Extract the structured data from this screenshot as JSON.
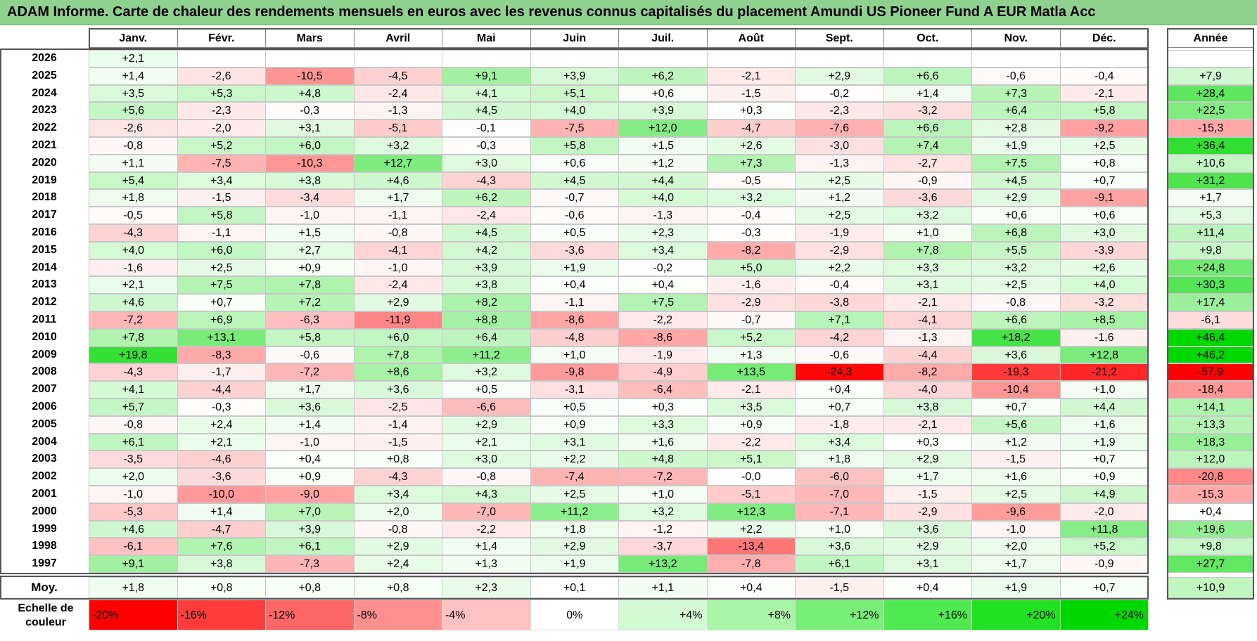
{
  "title": "ADAM Informe. Carte de chaleur des rendements mensuels en euros avec les revenus connus capitalisés du placement Amundi US Pioneer Fund A EUR Matla Acc",
  "chart_data": {
    "type": "heatmap",
    "title": "ADAM Informe. Carte de chaleur des rendements mensuels en euros avec les revenus connus capitalisés du placement Amundi US Pioneer Fund A EUR Matla Acc",
    "months": [
      "Janv.",
      "Févr.",
      "Mars",
      "Avril",
      "Mai",
      "Juin",
      "Juil.",
      "Août",
      "Sept.",
      "Oct.",
      "Nov.",
      "Déc."
    ],
    "year_header": "Année",
    "rows": [
      {
        "year": "2026",
        "m": [
          "+2,1",
          "",
          "",
          "",
          "",
          "",
          "",
          "",
          "",
          "",
          "",
          ""
        ],
        "annual": ""
      },
      {
        "year": "2025",
        "m": [
          "+1,4",
          "-2,6",
          "-10,5",
          "-4,5",
          "+9,1",
          "+3,9",
          "+6,2",
          "-2,1",
          "+2,9",
          "+6,6",
          "-0,6",
          "-0,4"
        ],
        "annual": "+7,9"
      },
      {
        "year": "2024",
        "m": [
          "+3,5",
          "+5,3",
          "+4,8",
          "-2,4",
          "+4,1",
          "+5,1",
          "+0,6",
          "-1,5",
          "-0,2",
          "+1,4",
          "+7,3",
          "-2,1"
        ],
        "annual": "+28,4"
      },
      {
        "year": "2023",
        "m": [
          "+5,6",
          "-2,3",
          "-0,3",
          "-1,3",
          "+4,5",
          "+4,0",
          "+3,9",
          "+0,3",
          "-2,3",
          "-3,2",
          "+6,4",
          "+5,8"
        ],
        "annual": "+22,5"
      },
      {
        "year": "2022",
        "m": [
          "-2,6",
          "-2,0",
          "+3,1",
          "-5,1",
          "-0,1",
          "-7,5",
          "+12,0",
          "-4,7",
          "-7,6",
          "+6,6",
          "+2,8",
          "-9,2"
        ],
        "annual": "-15,3"
      },
      {
        "year": "2021",
        "m": [
          "-0,8",
          "+5,2",
          "+6,0",
          "+3,2",
          "-0,3",
          "+5,8",
          "+1,5",
          "+2,6",
          "-3,0",
          "+7,4",
          "+1,9",
          "+2,5"
        ],
        "annual": "+36,4"
      },
      {
        "year": "2020",
        "m": [
          "+1,1",
          "-7,5",
          "-10,3",
          "+12,7",
          "+3,0",
          "+0,6",
          "+1,2",
          "+7,3",
          "-1,3",
          "-2,7",
          "+7,5",
          "+0,8"
        ],
        "annual": "+10,6"
      },
      {
        "year": "2019",
        "m": [
          "+5,4",
          "+3,4",
          "+3,8",
          "+4,6",
          "-4,3",
          "+4,5",
          "+4,4",
          "-0,5",
          "+2,5",
          "-0,9",
          "+4,5",
          "+0,7"
        ],
        "annual": "+31,2"
      },
      {
        "year": "2018",
        "m": [
          "+1,8",
          "-1,5",
          "-3,4",
          "+1,7",
          "+6,2",
          "-0,7",
          "+4,0",
          "+3,2",
          "+1,2",
          "-3,6",
          "+2,9",
          "-9,1"
        ],
        "annual": "+1,7"
      },
      {
        "year": "2017",
        "m": [
          "-0,5",
          "+5,8",
          "-1,0",
          "-1,1",
          "-2,4",
          "-0,6",
          "-1,3",
          "-0,4",
          "+2,5",
          "+3,2",
          "+0,6",
          "+0,6"
        ],
        "annual": "+5,3"
      },
      {
        "year": "2016",
        "m": [
          "-4,3",
          "-1,1",
          "+1,5",
          "-0,8",
          "+4,5",
          "+0,5",
          "+2,3",
          "-0,3",
          "-1,9",
          "+1,0",
          "+6,8",
          "+3,0"
        ],
        "annual": "+11,4"
      },
      {
        "year": "2015",
        "m": [
          "+4,0",
          "+6,0",
          "+2,7",
          "-4,1",
          "+4,2",
          "-3,6",
          "+3,4",
          "-8,2",
          "-2,9",
          "+7,8",
          "+5,5",
          "-3,9"
        ],
        "annual": "+9,8"
      },
      {
        "year": "2014",
        "m": [
          "-1,6",
          "+2,5",
          "+0,9",
          "-1,0",
          "+3,9",
          "+1,9",
          "-0,2",
          "+5,0",
          "+2,2",
          "+3,3",
          "+3,2",
          "+2,6"
        ],
        "annual": "+24,8"
      },
      {
        "year": "2013",
        "m": [
          "+2,1",
          "+7,5",
          "+7,8",
          "-2,4",
          "+3,8",
          "+0,4",
          "+0,4",
          "-1,6",
          "-0,4",
          "+3,1",
          "+2,5",
          "+4,0"
        ],
        "annual": "+30,3"
      },
      {
        "year": "2012",
        "m": [
          "+4,6",
          "+0,7",
          "+7,2",
          "+2,9",
          "+8,2",
          "-1,1",
          "+7,5",
          "-2,9",
          "-3,8",
          "-2,1",
          "-0,8",
          "-3,2"
        ],
        "annual": "+17,4"
      },
      {
        "year": "2011",
        "m": [
          "-7,2",
          "+6,9",
          "-6,3",
          "-11,9",
          "+8,8",
          "-8,6",
          "-2,2",
          "-0,7",
          "+7,1",
          "-4,1",
          "+6,6",
          "+8,5"
        ],
        "annual": "-6,1"
      },
      {
        "year": "2010",
        "m": [
          "+7,8",
          "+13,1",
          "+5,8",
          "+6,0",
          "+6,4",
          "-4,8",
          "-8,6",
          "+5,2",
          "-4,2",
          "-1,3",
          "+18,2",
          "-1,6"
        ],
        "annual": "+46,4"
      },
      {
        "year": "2009",
        "m": [
          "+19,8",
          "-8,3",
          "-0,6",
          "+7,8",
          "+11,2",
          "+1,0",
          "-1,9",
          "+1,3",
          "-0,6",
          "-4,4",
          "+3,6",
          "+12,8"
        ],
        "annual": "+46,2"
      },
      {
        "year": "2008",
        "m": [
          "-4,3",
          "-1,7",
          "-7,2",
          "+8,6",
          "+3,2",
          "-9,8",
          "-4,9",
          "+13,5",
          "-24,3",
          "-8,2",
          "-19,3",
          "-21,2"
        ],
        "annual": "-57,9"
      },
      {
        "year": "2007",
        "m": [
          "+4,1",
          "-4,4",
          "+1,7",
          "+3,6",
          "+0,5",
          "-3,1",
          "-6,4",
          "-2,1",
          "+0,4",
          "-4,0",
          "-10,4",
          "+1,0"
        ],
        "annual": "-18,4"
      },
      {
        "year": "2006",
        "m": [
          "+5,7",
          "-0,3",
          "+3,6",
          "-2,5",
          "-6,6",
          "+0,5",
          "+0,3",
          "+3,5",
          "+0,7",
          "+3,8",
          "+0,7",
          "+4,4"
        ],
        "annual": "+14,1"
      },
      {
        "year": "2005",
        "m": [
          "-0,8",
          "+2,4",
          "+1,4",
          "-1,4",
          "+2,9",
          "+0,9",
          "+3,3",
          "+0,9",
          "-1,8",
          "-2,1",
          "+5,6",
          "+1,6"
        ],
        "annual": "+13,3"
      },
      {
        "year": "2004",
        "m": [
          "+6,1",
          "+2,1",
          "-1,0",
          "-1,5",
          "+2,1",
          "+3,1",
          "+1,6",
          "-2,2",
          "+3,4",
          "+0,3",
          "+1,2",
          "+1,9"
        ],
        "annual": "+18,3"
      },
      {
        "year": "2003",
        "m": [
          "-3,5",
          "-4,6",
          "+0,4",
          "+0,8",
          "+3,0",
          "+2,2",
          "+4,8",
          "+5,1",
          "+1,8",
          "+2,9",
          "-1,5",
          "+0,7"
        ],
        "annual": "+12,0"
      },
      {
        "year": "2002",
        "m": [
          "+2,0",
          "-3,6",
          "+0,9",
          "-4,3",
          "-0,8",
          "-7,4",
          "-7,2",
          "-0,0",
          "-6,0",
          "+1,7",
          "+1,6",
          "+0,9"
        ],
        "annual": "-20,8"
      },
      {
        "year": "2001",
        "m": [
          "-1,0",
          "-10,0",
          "-9,0",
          "+3,4",
          "+4,3",
          "+2,5",
          "+1,0",
          "-5,1",
          "-7,0",
          "-1,5",
          "+2,5",
          "+4,9"
        ],
        "annual": "-15,3"
      },
      {
        "year": "2000",
        "m": [
          "-5,3",
          "+1,4",
          "+7,0",
          "+2,0",
          "-7,0",
          "+11,2",
          "+3,2",
          "+12,3",
          "-7,1",
          "-2,9",
          "-9,6",
          "-2,0"
        ],
        "annual": "+0,4"
      },
      {
        "year": "1999",
        "m": [
          "+4,6",
          "-4,7",
          "+3,9",
          "-0,8",
          "-2,2",
          "+1,8",
          "-1,2",
          "+2,2",
          "+1,0",
          "+3,6",
          "-1,0",
          "+11,8"
        ],
        "annual": "+19,6"
      },
      {
        "year": "1998",
        "m": [
          "-6,1",
          "+7,6",
          "+6,1",
          "+2,9",
          "+1,4",
          "+2,9",
          "-3,7",
          "-13,4",
          "+3,6",
          "+2,9",
          "+2,0",
          "+5,2"
        ],
        "annual": "+9,8"
      },
      {
        "year": "1997",
        "m": [
          "+9,1",
          "+3,8",
          "-7,3",
          "+2,4",
          "+1,3",
          "+1,9",
          "+13,2",
          "-7,8",
          "+6,1",
          "+3,1",
          "+1,7",
          "-0,9"
        ],
        "annual": "+27,7"
      }
    ],
    "average": {
      "label": "Moy.",
      "m": [
        "+1,8",
        "+0,8",
        "+0,8",
        "+0,8",
        "+2,3",
        "+0,1",
        "+1,1",
        "+0,4",
        "-1,5",
        "+0,4",
        "+1,9",
        "+0,7"
      ],
      "annual": "+10,9"
    },
    "scale": {
      "label_line1": "Echelle de",
      "label_line2": "couleur",
      "steps": [
        {
          "label": "-20%",
          "value": -20,
          "color": "#ff0000"
        },
        {
          "label": "-16%",
          "value": -16,
          "color": "#ff3b3b"
        },
        {
          "label": "-12%",
          "value": -12,
          "color": "#ff6666"
        },
        {
          "label": "-8%",
          "value": -8,
          "color": "#ff8f8f"
        },
        {
          "label": "-4%",
          "value": -4,
          "color": "#ffc2c2"
        },
        {
          "label": "0%",
          "value": 0,
          "color": "#ffffff"
        },
        {
          "label": "+4%",
          "value": 4,
          "color": "#d4fad4"
        },
        {
          "label": "+8%",
          "value": 8,
          "color": "#a8f5a8"
        },
        {
          "label": "+12%",
          "value": 12,
          "color": "#78f078"
        },
        {
          "label": "+16%",
          "value": 16,
          "color": "#4fea4f"
        },
        {
          "label": "+20%",
          "value": 20,
          "color": "#22e022"
        },
        {
          "label": "+24%",
          "value": 24,
          "color": "#00d800"
        }
      ]
    }
  }
}
